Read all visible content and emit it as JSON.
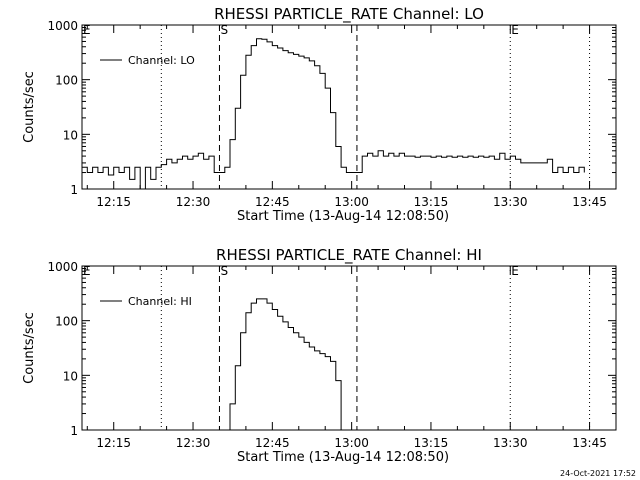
{
  "footer": {
    "timestamp": "24-Oct-2021 17:52"
  },
  "chart_data": [
    {
      "type": "line",
      "title": "RHESSI PARTICLE_RATE Channel: LO",
      "xlabel": "Start Time (13-Aug-14 12:08:50)",
      "ylabel": "Counts/sec",
      "yscale": "log",
      "xlim": [
        "12:09",
        "13:50"
      ],
      "ylim": [
        1,
        1000
      ],
      "x_ticks": [
        "12:15",
        "12:30",
        "12:45",
        "13:00",
        "13:15",
        "13:30",
        "13:45"
      ],
      "y_ticks": [
        "1",
        "10",
        "100",
        "1000"
      ],
      "legend": {
        "position": "top-left",
        "label": "Channel: LO"
      },
      "markers": [
        {
          "label": "E",
          "time": "12:09",
          "style": "dotted"
        },
        {
          "label": "",
          "time": "12:24",
          "style": "dotted"
        },
        {
          "label": "S",
          "time": "12:35",
          "style": "dashed"
        },
        {
          "label": "",
          "time": "13:01",
          "style": "dashed"
        },
        {
          "label": "E",
          "time": "13:30",
          "style": "dotted"
        },
        {
          "label": "",
          "time": "13:45",
          "style": "dotted"
        }
      ],
      "series": [
        {
          "name": "Channel: LO",
          "points": [
            [
              "12:09",
              2.5
            ],
            [
              "12:10",
              2
            ],
            [
              "12:11",
              2.5
            ],
            [
              "12:12",
              2
            ],
            [
              "12:13",
              2.5
            ],
            [
              "12:14",
              1.8
            ],
            [
              "12:15",
              2.5
            ],
            [
              "12:16",
              2
            ],
            [
              "12:17",
              2.5
            ],
            [
              "12:18",
              1.5
            ],
            [
              "12:19",
              2.5
            ],
            [
              "12:20",
              1
            ],
            [
              "12:21",
              2.5
            ],
            [
              "12:22",
              1.5
            ],
            [
              "12:23",
              2.5
            ],
            [
              "12:24",
              2.8
            ],
            [
              "12:25",
              3.5
            ],
            [
              "12:26",
              3
            ],
            [
              "12:27",
              3.5
            ],
            [
              "12:28",
              4
            ],
            [
              "12:29",
              3.5
            ],
            [
              "12:30",
              4
            ],
            [
              "12:31",
              4.5
            ],
            [
              "12:32",
              3.5
            ],
            [
              "12:33",
              4
            ],
            [
              "12:34",
              2
            ],
            [
              "12:35",
              2
            ],
            [
              "12:36",
              2.5
            ],
            [
              "12:37",
              8
            ],
            [
              "12:38",
              30
            ],
            [
              "12:39",
              120
            ],
            [
              "12:40",
              280
            ],
            [
              "12:41",
              420
            ],
            [
              "12:42",
              560
            ],
            [
              "12:43",
              550
            ],
            [
              "12:44",
              490
            ],
            [
              "12:45",
              420
            ],
            [
              "12:46",
              380
            ],
            [
              "12:47",
              340
            ],
            [
              "12:48",
              310
            ],
            [
              "12:49",
              290
            ],
            [
              "12:50",
              270
            ],
            [
              "12:51",
              250
            ],
            [
              "12:52",
              220
            ],
            [
              "12:53",
              180
            ],
            [
              "12:54",
              130
            ],
            [
              "12:55",
              70
            ],
            [
              "12:56",
              25
            ],
            [
              "12:57",
              6
            ],
            [
              "12:58",
              2.5
            ],
            [
              "12:59",
              2
            ],
            [
              "13:00",
              2
            ],
            [
              "13:01",
              2
            ],
            [
              "13:02",
              4
            ],
            [
              "13:03",
              4.5
            ],
            [
              "13:04",
              4
            ],
            [
              "13:05",
              5
            ],
            [
              "13:06",
              4
            ],
            [
              "13:07",
              4.5
            ],
            [
              "13:08",
              4
            ],
            [
              "13:09",
              4.5
            ],
            [
              "13:10",
              4
            ],
            [
              "13:11",
              4
            ],
            [
              "13:12",
              3.8
            ],
            [
              "13:13",
              4
            ],
            [
              "13:14",
              4
            ],
            [
              "13:15",
              3.8
            ],
            [
              "13:16",
              4
            ],
            [
              "13:17",
              3.8
            ],
            [
              "13:18",
              4
            ],
            [
              "13:19",
              3.8
            ],
            [
              "13:20",
              4
            ],
            [
              "13:21",
              3.8
            ],
            [
              "13:22",
              4
            ],
            [
              "13:23",
              3.8
            ],
            [
              "13:24",
              4
            ],
            [
              "13:25",
              3.8
            ],
            [
              "13:26",
              4
            ],
            [
              "13:27",
              3.5
            ],
            [
              "13:28",
              4.5
            ],
            [
              "13:29",
              3.5
            ],
            [
              "13:30",
              4
            ],
            [
              "13:31",
              3.5
            ],
            [
              "13:32",
              3
            ],
            [
              "13:33",
              3
            ],
            [
              "13:34",
              3
            ],
            [
              "13:35",
              3
            ],
            [
              "13:36",
              3
            ],
            [
              "13:37",
              3.5
            ],
            [
              "13:38",
              2
            ],
            [
              "13:39",
              2.5
            ],
            [
              "13:40",
              2
            ],
            [
              "13:41",
              2.5
            ],
            [
              "13:42",
              2
            ],
            [
              "13:43",
              2.5
            ],
            [
              "13:44",
              2
            ]
          ]
        }
      ]
    },
    {
      "type": "line",
      "title": "RHESSI PARTICLE_RATE Channel: HI",
      "xlabel": "Start Time (13-Aug-14 12:08:50)",
      "ylabel": "Counts/sec",
      "yscale": "log",
      "xlim": [
        "12:09",
        "13:50"
      ],
      "ylim": [
        1,
        1000
      ],
      "x_ticks": [
        "12:15",
        "12:30",
        "12:45",
        "13:00",
        "13:15",
        "13:30",
        "13:45"
      ],
      "y_ticks": [
        "1",
        "10",
        "100",
        "1000"
      ],
      "legend": {
        "position": "top-left",
        "label": "Channel: HI"
      },
      "markers": [
        {
          "label": "E",
          "time": "12:09",
          "style": "dotted"
        },
        {
          "label": "",
          "time": "12:24",
          "style": "dotted"
        },
        {
          "label": "S",
          "time": "12:35",
          "style": "dashed"
        },
        {
          "label": "",
          "time": "13:01",
          "style": "dashed"
        },
        {
          "label": "E",
          "time": "13:30",
          "style": "dotted"
        },
        {
          "label": "",
          "time": "13:45",
          "style": "dotted"
        }
      ],
      "series": [
        {
          "name": "Channel: HI",
          "points": [
            [
              "12:36",
              1
            ],
            [
              "12:37",
              3
            ],
            [
              "12:38",
              15
            ],
            [
              "12:39",
              60
            ],
            [
              "12:40",
              140
            ],
            [
              "12:41",
              210
            ],
            [
              "12:42",
              250
            ],
            [
              "12:43",
              250
            ],
            [
              "12:44",
              210
            ],
            [
              "12:45",
              160
            ],
            [
              "12:46",
              120
            ],
            [
              "12:47",
              95
            ],
            [
              "12:48",
              75
            ],
            [
              "12:49",
              60
            ],
            [
              "12:50",
              50
            ],
            [
              "12:51",
              40
            ],
            [
              "12:52",
              33
            ],
            [
              "12:53",
              28
            ],
            [
              "12:54",
              25
            ],
            [
              "12:55",
              22
            ],
            [
              "12:56",
              18
            ],
            [
              "12:57",
              8
            ],
            [
              "12:58",
              1
            ]
          ]
        }
      ]
    }
  ]
}
